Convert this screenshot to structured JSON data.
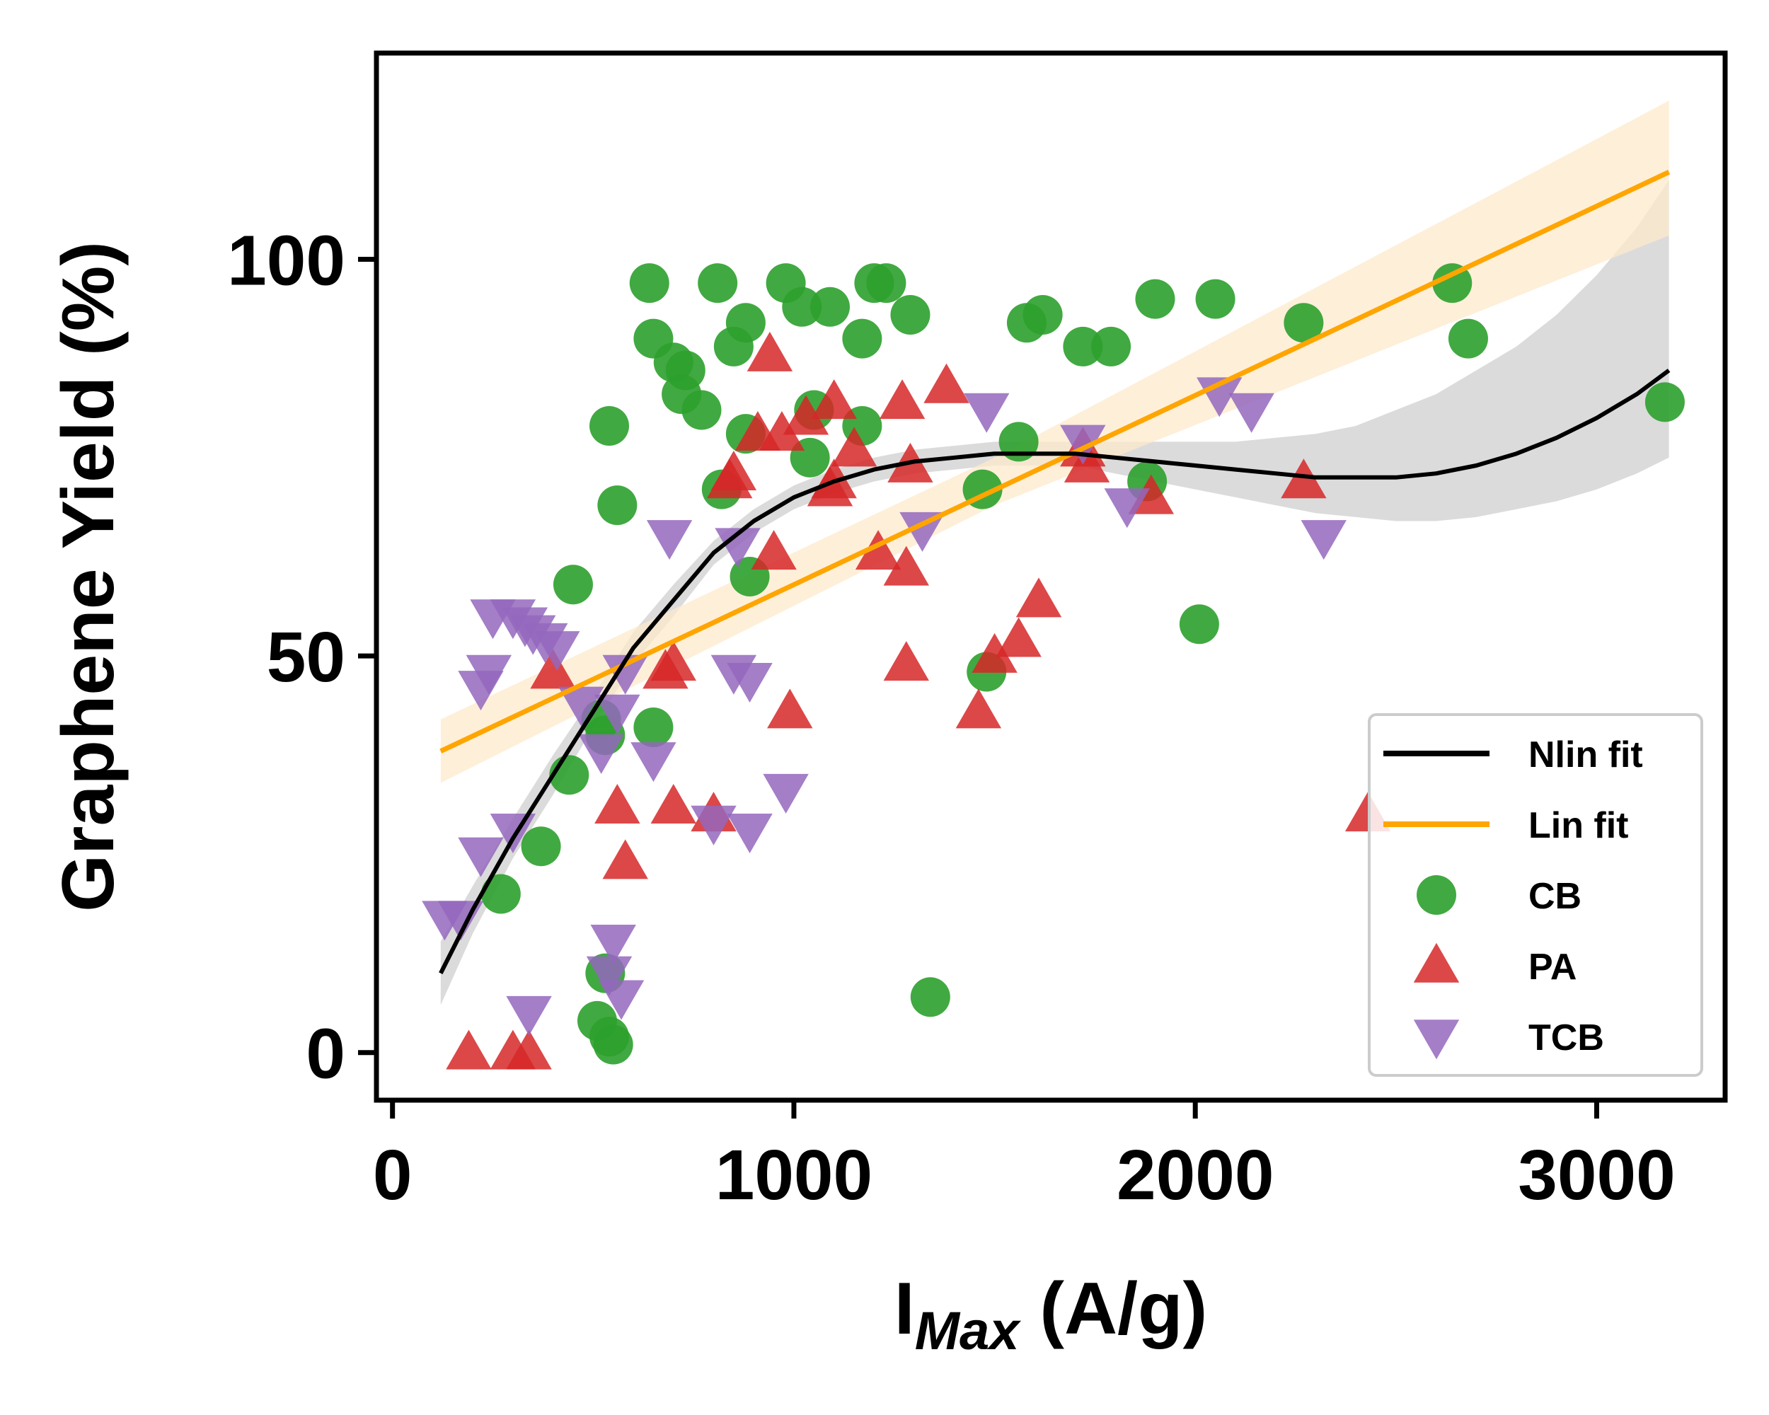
{
  "chart_data": {
    "type": "scatter",
    "title": "",
    "xlabel_main": "I",
    "xlabel_sub": "Max",
    "xlabel_unit": " (A/g)",
    "ylabel": "Graphene Yield (%)",
    "xlim": [
      -40,
      3320
    ],
    "ylim": [
      -6,
      126
    ],
    "x_ticks": [
      0,
      1000,
      2000,
      3000
    ],
    "y_ticks": [
      0,
      50,
      100
    ],
    "x_tick_labels": [
      "0",
      "1000",
      "2000",
      "3000"
    ],
    "y_tick_labels": [
      "0",
      "50",
      "100"
    ],
    "grid": false,
    "legend_position": "lower-right",
    "legend": [
      {
        "label": "Nlin fit",
        "kind": "line",
        "color": "#000000"
      },
      {
        "label": "Lin fit",
        "kind": "line",
        "color": "#ffa500"
      },
      {
        "label": "CB",
        "kind": "circle",
        "color": "#2ca02c"
      },
      {
        "label": "PA",
        "kind": "triangle-up",
        "color": "#d62728"
      },
      {
        "label": "TCB",
        "kind": "triangle-down",
        "color": "#9467bd"
      }
    ],
    "series": [
      {
        "name": "CB",
        "marker": "circle",
        "color": "#2ca02c",
        "points": [
          [
            640,
            97
          ],
          [
            810,
            97
          ],
          [
            980,
            97
          ],
          [
            1200,
            97
          ],
          [
            1230,
            97
          ],
          [
            2640,
            97
          ],
          [
            650,
            90
          ],
          [
            880,
            92
          ],
          [
            850,
            89
          ],
          [
            1020,
            94
          ],
          [
            1090,
            94
          ],
          [
            1290,
            93
          ],
          [
            1170,
            90
          ],
          [
            700,
            87
          ],
          [
            730,
            86
          ],
          [
            720,
            83
          ],
          [
            770,
            81
          ],
          [
            1050,
            81
          ],
          [
            1170,
            79
          ],
          [
            880,
            78
          ],
          [
            1040,
            75
          ],
          [
            540,
            79
          ],
          [
            560,
            69
          ],
          [
            2050,
            95
          ],
          [
            1900,
            95
          ],
          [
            2270,
            92
          ],
          [
            2680,
            90
          ],
          [
            1580,
            92
          ],
          [
            1620,
            93
          ],
          [
            1720,
            89
          ],
          [
            1790,
            89
          ],
          [
            3170,
            82
          ],
          [
            1560,
            77
          ],
          [
            1470,
            71
          ],
          [
            1880,
            72
          ],
          [
            820,
            71
          ],
          [
            890,
            60
          ],
          [
            450,
            59
          ],
          [
            2010,
            54
          ],
          [
            1480,
            48
          ],
          [
            650,
            41
          ],
          [
            520,
            42
          ],
          [
            530,
            40
          ],
          [
            440,
            35
          ],
          [
            370,
            26
          ],
          [
            270,
            20
          ],
          [
            530,
            10
          ],
          [
            1340,
            7
          ],
          [
            510,
            4
          ],
          [
            540,
            2
          ],
          [
            550,
            1
          ]
        ]
      },
      {
        "name": "PA",
        "marker": "triangle-up",
        "color": "#d62728",
        "points": [
          [
            940,
            88
          ],
          [
            1100,
            82
          ],
          [
            1030,
            80
          ],
          [
            1270,
            82
          ],
          [
            1380,
            84
          ],
          [
            970,
            78
          ],
          [
            910,
            78
          ],
          [
            1150,
            76
          ],
          [
            1100,
            72
          ],
          [
            850,
            73
          ],
          [
            840,
            72
          ],
          [
            1290,
            74
          ],
          [
            1720,
            76
          ],
          [
            1730,
            74
          ],
          [
            1090,
            71
          ],
          [
            1890,
            70
          ],
          [
            2270,
            72
          ],
          [
            950,
            63
          ],
          [
            1210,
            63
          ],
          [
            1280,
            61
          ],
          [
            1610,
            57
          ],
          [
            1560,
            52
          ],
          [
            1500,
            50
          ],
          [
            1280,
            49
          ],
          [
            680,
            48
          ],
          [
            700,
            49
          ],
          [
            400,
            48
          ],
          [
            1460,
            43
          ],
          [
            990,
            43
          ],
          [
            560,
            31
          ],
          [
            700,
            31
          ],
          [
            800,
            30
          ],
          [
            2430,
            30
          ],
          [
            580,
            24
          ],
          [
            190,
            0
          ],
          [
            300,
            0
          ],
          [
            340,
            0
          ]
        ]
      },
      {
        "name": "TCB",
        "marker": "triangle-down",
        "color": "#9467bd",
        "points": [
          [
            690,
            65
          ],
          [
            860,
            64
          ],
          [
            1320,
            66
          ],
          [
            1830,
            69
          ],
          [
            2320,
            65
          ],
          [
            1480,
            81
          ],
          [
            1720,
            77
          ],
          [
            2060,
            83
          ],
          [
            2140,
            81
          ],
          [
            250,
            55
          ],
          [
            300,
            55
          ],
          [
            330,
            54
          ],
          [
            350,
            53
          ],
          [
            380,
            52
          ],
          [
            410,
            51
          ],
          [
            240,
            48
          ],
          [
            220,
            46
          ],
          [
            580,
            48
          ],
          [
            850,
            48
          ],
          [
            890,
            47
          ],
          [
            470,
            44
          ],
          [
            560,
            43
          ],
          [
            520,
            38
          ],
          [
            650,
            37
          ],
          [
            980,
            33
          ],
          [
            300,
            28
          ],
          [
            220,
            25
          ],
          [
            890,
            28
          ],
          [
            800,
            29
          ],
          [
            130,
            17
          ],
          [
            170,
            17
          ],
          [
            550,
            14
          ],
          [
            540,
            10
          ],
          [
            570,
            7
          ],
          [
            340,
            5
          ]
        ]
      }
    ],
    "nlin_fit": {
      "name": "Nlin fit",
      "color": "#000000",
      "band_color": "#d9d9d9",
      "points": [
        [
          120,
          10
        ],
        [
          200,
          18
        ],
        [
          300,
          27
        ],
        [
          400,
          35
        ],
        [
          500,
          43
        ],
        [
          600,
          51
        ],
        [
          700,
          57
        ],
        [
          800,
          63
        ],
        [
          900,
          67
        ],
        [
          1000,
          70
        ],
        [
          1100,
          72
        ],
        [
          1200,
          73.5
        ],
        [
          1300,
          74.5
        ],
        [
          1400,
          75
        ],
        [
          1500,
          75.5
        ],
        [
          1600,
          75.5
        ],
        [
          1700,
          75.5
        ],
        [
          1800,
          75
        ],
        [
          1900,
          74.5
        ],
        [
          2000,
          74
        ],
        [
          2100,
          73.5
        ],
        [
          2200,
          73
        ],
        [
          2300,
          72.5
        ],
        [
          2400,
          72.5
        ],
        [
          2500,
          72.5
        ],
        [
          2600,
          73
        ],
        [
          2700,
          74
        ],
        [
          2800,
          75.5
        ],
        [
          2900,
          77.5
        ],
        [
          3000,
          80
        ],
        [
          3100,
          83
        ],
        [
          3180,
          86
        ]
      ],
      "band_upper": [
        [
          120,
          14
        ],
        [
          200,
          21
        ],
        [
          300,
          29.5
        ],
        [
          400,
          37.5
        ],
        [
          500,
          45
        ],
        [
          600,
          53
        ],
        [
          700,
          59
        ],
        [
          800,
          64.5
        ],
        [
          900,
          68.5
        ],
        [
          1000,
          71.5
        ],
        [
          1100,
          73.5
        ],
        [
          1200,
          75
        ],
        [
          1300,
          76
        ],
        [
          1400,
          76.5
        ],
        [
          1500,
          77
        ],
        [
          1600,
          77
        ],
        [
          1700,
          77
        ],
        [
          1800,
          77
        ],
        [
          1900,
          77
        ],
        [
          2000,
          77
        ],
        [
          2100,
          77
        ],
        [
          2200,
          77.5
        ],
        [
          2300,
          78
        ],
        [
          2400,
          79
        ],
        [
          2500,
          81
        ],
        [
          2600,
          83
        ],
        [
          2700,
          86
        ],
        [
          2800,
          89
        ],
        [
          2900,
          93
        ],
        [
          3000,
          98
        ],
        [
          3100,
          104
        ],
        [
          3180,
          110
        ]
      ],
      "band_lower": [
        [
          120,
          6
        ],
        [
          200,
          15
        ],
        [
          300,
          24.5
        ],
        [
          400,
          32.5
        ],
        [
          500,
          41
        ],
        [
          600,
          49
        ],
        [
          700,
          55
        ],
        [
          800,
          61.5
        ],
        [
          900,
          65.5
        ],
        [
          1000,
          68.5
        ],
        [
          1100,
          70.5
        ],
        [
          1200,
          72
        ],
        [
          1300,
          73
        ],
        [
          1400,
          73.5
        ],
        [
          1500,
          74
        ],
        [
          1600,
          74
        ],
        [
          1700,
          74
        ],
        [
          1800,
          73
        ],
        [
          1900,
          72
        ],
        [
          2000,
          71
        ],
        [
          2100,
          70
        ],
        [
          2200,
          69
        ],
        [
          2300,
          68
        ],
        [
          2400,
          67.5
        ],
        [
          2500,
          67
        ],
        [
          2600,
          67
        ],
        [
          2700,
          67.5
        ],
        [
          2800,
          68.5
        ],
        [
          2900,
          69.5
        ],
        [
          3000,
          71
        ],
        [
          3100,
          73
        ],
        [
          3180,
          75
        ]
      ]
    },
    "lin_fit": {
      "name": "Lin fit",
      "color": "#ffa500",
      "band_color": "#fde9cc",
      "points": [
        [
          120,
          38
        ],
        [
          3180,
          111
        ]
      ],
      "band_upper": [
        [
          120,
          42
        ],
        [
          1500,
          75
        ],
        [
          3180,
          120
        ]
      ],
      "band_lower": [
        [
          120,
          34
        ],
        [
          1500,
          69
        ],
        [
          3180,
          103
        ]
      ]
    }
  }
}
